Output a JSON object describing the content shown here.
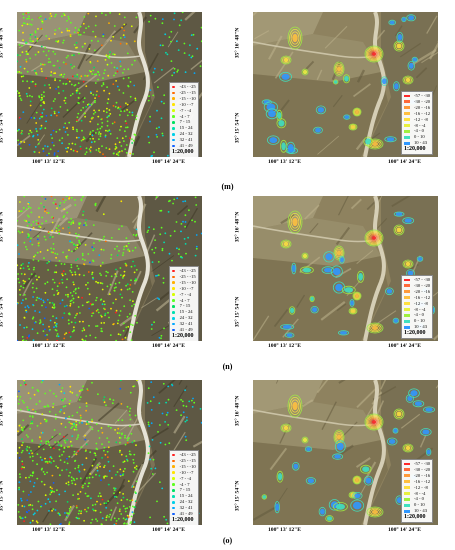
{
  "coords": {
    "lat_top": "35° 16' 48\"N",
    "lat_bottom": "35° 15' 54\"N",
    "lon_left": "100° 13' 12\"E",
    "lon_right": "100° 14' 24\"E"
  },
  "scale": "1:20,000",
  "legend_points": [
    {
      "label": "-43 - -25",
      "color": "#ff2020"
    },
    {
      "label": "-25 - -15",
      "color": "#ff6a00"
    },
    {
      "label": "-15 - -10",
      "color": "#ffb000"
    },
    {
      "label": "-10 - -7",
      "color": "#ffe400"
    },
    {
      "label": "-7 - -4",
      "color": "#d8ff00"
    },
    {
      "label": "-4 - 7",
      "color": "#5fff20"
    },
    {
      "label": "7 - 15",
      "color": "#00e060"
    },
    {
      "label": "15 - 24",
      "color": "#00e0b0"
    },
    {
      "label": "24 - 32",
      "color": "#00d0e8"
    },
    {
      "label": "32 - 41",
      "color": "#00a8ff"
    },
    {
      "label": "41 - 49",
      "color": "#1060ff"
    }
  ],
  "legend_contours": [
    {
      "label": "-57 - -30",
      "color": "#ff2a2a"
    },
    {
      "label": "-30 - -20",
      "color": "#ff6a3a"
    },
    {
      "label": "-20 - -16",
      "color": "#ff9a3a"
    },
    {
      "label": "-16 - -12",
      "color": "#ffc040"
    },
    {
      "label": "-12 - -8",
      "color": "#ffe040"
    },
    {
      "label": "-8 - -4",
      "color": "#e8f040"
    },
    {
      "label": "-4 - 0",
      "color": "#a0f040"
    },
    {
      "label": "0 - 10",
      "color": "#40e0c0"
    },
    {
      "label": "10 - 43",
      "color": "#3098ff"
    }
  ],
  "rows": [
    {
      "label": "(m)"
    },
    {
      "label": "(n)"
    },
    {
      "label": "(o)"
    }
  ]
}
